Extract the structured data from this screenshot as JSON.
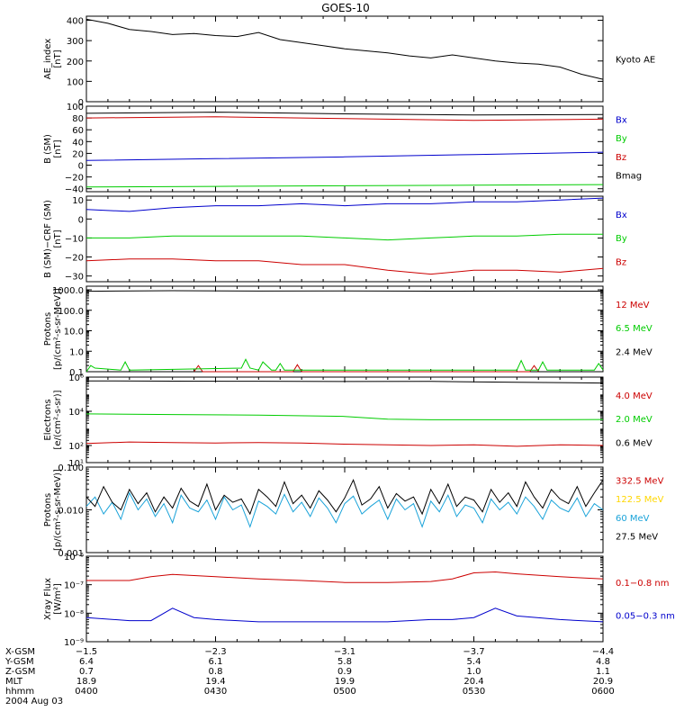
{
  "title": "GOES-10",
  "colors": {
    "black": "#000000",
    "red": "#cc0000",
    "green": "#00cc00",
    "blue": "#0000cc",
    "yellow": "#ffd700",
    "cyan": "#1aa3d9"
  },
  "chart_data": [
    {
      "type": "line",
      "ylabel": [
        "AE_index",
        "[nT]"
      ],
      "scale": "linear",
      "ylim": [
        0,
        420
      ],
      "yticks": [
        0,
        100,
        200,
        300,
        400
      ],
      "ytick_labels": [
        "0",
        "100",
        "200",
        "300",
        "400"
      ],
      "series": [
        {
          "name": "Kyoto AE",
          "color": "#000000",
          "x": [
            0,
            5,
            10,
            15,
            20,
            25,
            30,
            35,
            40,
            45,
            50,
            55,
            60,
            65,
            70,
            75,
            80,
            85,
            90,
            95,
            100,
            105,
            110,
            115,
            120
          ],
          "y": [
            405,
            385,
            355,
            345,
            330,
            335,
            325,
            320,
            340,
            305,
            290,
            275,
            260,
            250,
            240,
            225,
            215,
            230,
            215,
            200,
            190,
            185,
            170,
            135,
            110
          ]
        }
      ]
    },
    {
      "type": "line",
      "ylabel": [
        "B (SM)",
        "[nT]"
      ],
      "scale": "linear",
      "ylim": [
        -45,
        100
      ],
      "yticks": [
        -40,
        -20,
        0,
        20,
        40,
        60,
        80,
        100
      ],
      "ytick_labels": [
        "−40",
        "−20",
        "0",
        "20",
        "40",
        "60",
        "80",
        "100"
      ],
      "series": [
        {
          "name": "Bx",
          "color": "#0000cc",
          "x": [
            0,
            30,
            60,
            90,
            120
          ],
          "y": [
            8,
            11,
            14,
            18,
            22
          ]
        },
        {
          "name": "By",
          "color": "#00cc00",
          "x": [
            0,
            30,
            60,
            90,
            120
          ],
          "y": [
            -37,
            -36,
            -35,
            -34,
            -33
          ]
        },
        {
          "name": "Bz",
          "color": "#cc0000",
          "x": [
            0,
            30,
            60,
            90,
            120
          ],
          "y": [
            80,
            82,
            79,
            76,
            78
          ]
        },
        {
          "name": "Bmag",
          "color": "#000000",
          "x": [
            0,
            30,
            60,
            90,
            120
          ],
          "y": [
            88,
            90,
            87,
            85,
            86
          ]
        }
      ]
    },
    {
      "type": "line",
      "ylabel": [
        "B (SM)−CRF (SM)",
        "[nT]"
      ],
      "scale": "linear",
      "ylim": [
        -33,
        12
      ],
      "yticks": [
        -30,
        -20,
        -10,
        0,
        10
      ],
      "ytick_labels": [
        "−30",
        "−20",
        "−10",
        "0",
        "10"
      ],
      "series": [
        {
          "name": "Bx",
          "color": "#0000cc",
          "x": [
            0,
            10,
            20,
            30,
            40,
            50,
            60,
            70,
            80,
            90,
            100,
            110,
            120
          ],
          "y": [
            5,
            4,
            6,
            7,
            7,
            8,
            7,
            8,
            8,
            9,
            9,
            10,
            11
          ]
        },
        {
          "name": "By",
          "color": "#00cc00",
          "x": [
            0,
            10,
            20,
            30,
            40,
            50,
            60,
            70,
            80,
            90,
            100,
            110,
            120
          ],
          "y": [
            -10,
            -10,
            -9,
            -9,
            -9,
            -9,
            -10,
            -11,
            -10,
            -9,
            -9,
            -8,
            -8
          ]
        },
        {
          "name": "Bz",
          "color": "#cc0000",
          "x": [
            0,
            10,
            20,
            30,
            40,
            50,
            60,
            70,
            80,
            90,
            100,
            110,
            120
          ],
          "y": [
            -22,
            -21,
            -21,
            -22,
            -22,
            -24,
            -24,
            -27,
            -29,
            -27,
            -27,
            -28,
            -26
          ]
        }
      ]
    },
    {
      "type": "line",
      "ylabel": [
        "Protons",
        "[p/(cm²-s-sr-MeV)]"
      ],
      "scale": "log",
      "ylim": [
        0.1,
        1500
      ],
      "yticks": [
        0.1,
        1.0,
        10.0,
        100.0,
        1000.0
      ],
      "ytick_labels": [
        "0.1",
        "1.0",
        "10.0",
        "100.0",
        "1000.0"
      ],
      "series": [
        {
          "name": "12 MeV",
          "color": "#cc0000",
          "x": [
            25,
            26,
            27,
            48,
            49,
            50,
            103,
            104,
            105
          ],
          "y": [
            0.1,
            0.2,
            0.1,
            0.1,
            0.22,
            0.1,
            0.1,
            0.2,
            0.1
          ]
        },
        {
          "name": "6.5 MeV",
          "color": "#00cc00",
          "x": [
            0,
            1,
            2,
            8,
            9,
            10,
            36,
            37,
            38,
            40,
            41,
            43,
            44,
            45,
            46,
            47,
            100,
            101,
            102,
            105,
            106,
            107,
            118,
            119,
            120
          ],
          "y": [
            0.1,
            0.2,
            0.15,
            0.12,
            0.3,
            0.12,
            0.15,
            0.4,
            0.15,
            0.12,
            0.3,
            0.12,
            0.12,
            0.25,
            0.12,
            0.12,
            0.12,
            0.35,
            0.12,
            0.12,
            0.3,
            0.12,
            0.12,
            0.25,
            0.12
          ]
        },
        {
          "name": "2.4 MeV",
          "color": "#000000",
          "x": [
            0,
            20,
            40,
            60,
            80,
            100,
            120
          ],
          "y": [
            850,
            900,
            870,
            880,
            860,
            870,
            860
          ]
        }
      ]
    },
    {
      "type": "line",
      "ylabel": [
        "Electrons",
        "[e/(cm²-s-sr)]"
      ],
      "scale": "log",
      "ylim": [
        10,
        1000000
      ],
      "yticks": [
        10,
        100,
        10000,
        1000000
      ],
      "ytick_labels": [
        "10¹",
        "10²",
        "10⁴",
        "10⁶"
      ],
      "series": [
        {
          "name": "4.0 MeV",
          "color": "#cc0000",
          "x": [
            0,
            10,
            20,
            30,
            40,
            50,
            60,
            70,
            80,
            90,
            100,
            110,
            120
          ],
          "y": [
            130,
            160,
            150,
            140,
            150,
            140,
            120,
            110,
            100,
            110,
            90,
            110,
            100
          ]
        },
        {
          "name": "2.0 MeV",
          "color": "#00cc00",
          "x": [
            0,
            20,
            40,
            60,
            70,
            80,
            100,
            120
          ],
          "y": [
            7000,
            6500,
            6000,
            5000,
            3500,
            3200,
            3200,
            3300
          ]
        },
        {
          "name": "0.6 MeV",
          "color": "#000000",
          "x": [
            0,
            20,
            40,
            60,
            80,
            100,
            120
          ],
          "y": [
            600000,
            580000,
            570000,
            550000,
            560000,
            500000,
            450000
          ]
        }
      ]
    },
    {
      "type": "line",
      "ylabel": [
        "Protons",
        "[p/(cm²-s-sr-MeV)]"
      ],
      "scale": "log",
      "ylim": [
        0.001,
        0.1
      ],
      "yticks": [
        0.001,
        0.01,
        0.1
      ],
      "ytick_labels": [
        "0.001",
        "0.010",
        "0.100"
      ],
      "series": [
        {
          "name": "332.5 MeV",
          "color": "#cc0000",
          "x": [],
          "y": []
        },
        {
          "name": "122.5 MeV",
          "color": "#ffd700",
          "x": [],
          "y": []
        },
        {
          "name": "60 MeV",
          "color": "#1aa3d9",
          "x": [
            0,
            2,
            4,
            6,
            8,
            10,
            12,
            14,
            16,
            18,
            20,
            22,
            24,
            26,
            28,
            30,
            32,
            34,
            36,
            38,
            40,
            42,
            44,
            46,
            48,
            50,
            52,
            54,
            56,
            58,
            60,
            62,
            64,
            66,
            68,
            70,
            72,
            74,
            76,
            78,
            80,
            82,
            84,
            86,
            88,
            90,
            92,
            94,
            96,
            98,
            100,
            102,
            104,
            106,
            108,
            110,
            112,
            114,
            116,
            118,
            120
          ],
          "y": [
            0.012,
            0.02,
            0.008,
            0.015,
            0.006,
            0.025,
            0.01,
            0.018,
            0.007,
            0.014,
            0.005,
            0.022,
            0.011,
            0.009,
            0.017,
            0.006,
            0.02,
            0.01,
            0.013,
            0.004,
            0.016,
            0.012,
            0.008,
            0.023,
            0.009,
            0.015,
            0.007,
            0.019,
            0.011,
            0.005,
            0.014,
            0.021,
            0.008,
            0.012,
            0.017,
            0.006,
            0.018,
            0.01,
            0.014,
            0.004,
            0.016,
            0.009,
            0.022,
            0.007,
            0.013,
            0.011,
            0.005,
            0.018,
            0.01,
            0.015,
            0.008,
            0.02,
            0.012,
            0.006,
            0.017,
            0.011,
            0.009,
            0.019,
            0.007,
            0.014,
            0.01
          ]
        },
        {
          "name": "27.5 MeV",
          "color": "#000000",
          "x": [
            0,
            2,
            4,
            6,
            8,
            10,
            12,
            14,
            16,
            18,
            20,
            22,
            24,
            26,
            28,
            30,
            32,
            34,
            36,
            38,
            40,
            42,
            44,
            46,
            48,
            50,
            52,
            54,
            56,
            58,
            60,
            62,
            64,
            66,
            68,
            70,
            72,
            74,
            76,
            78,
            80,
            82,
            84,
            86,
            88,
            90,
            92,
            94,
            96,
            98,
            100,
            102,
            104,
            106,
            108,
            110,
            112,
            114,
            116,
            118,
            120
          ],
          "y": [
            0.02,
            0.012,
            0.035,
            0.015,
            0.01,
            0.03,
            0.014,
            0.025,
            0.009,
            0.02,
            0.011,
            0.032,
            0.016,
            0.012,
            0.04,
            0.01,
            0.022,
            0.015,
            0.018,
            0.008,
            0.03,
            0.02,
            0.012,
            0.045,
            0.014,
            0.022,
            0.011,
            0.028,
            0.017,
            0.009,
            0.019,
            0.05,
            0.013,
            0.018,
            0.035,
            0.011,
            0.024,
            0.016,
            0.02,
            0.008,
            0.03,
            0.014,
            0.04,
            0.012,
            0.02,
            0.017,
            0.009,
            0.03,
            0.015,
            0.025,
            0.012,
            0.045,
            0.02,
            0.011,
            0.03,
            0.018,
            0.014,
            0.035,
            0.012,
            0.025,
            0.05
          ]
        }
      ]
    },
    {
      "type": "line",
      "ylabel": [
        "Xray Flux",
        "[W/m²]"
      ],
      "scale": "log",
      "ylim": [
        1e-09,
        1e-06
      ],
      "yticks": [
        1e-09,
        1e-08,
        1e-07,
        1e-06
      ],
      "ytick_labels": [
        "10⁻⁹",
        "10⁻⁸",
        "10⁻⁷",
        "10⁻⁶"
      ],
      "series": [
        {
          "name": "0.1−0.8 nm",
          "color": "#cc0000",
          "x": [
            0,
            10,
            15,
            20,
            25,
            30,
            40,
            50,
            60,
            70,
            80,
            85,
            90,
            95,
            100,
            110,
            120
          ],
          "y": [
            1.4e-07,
            1.4e-07,
            1.9e-07,
            2.3e-07,
            2.1e-07,
            1.9e-07,
            1.6e-07,
            1.4e-07,
            1.2e-07,
            1.2e-07,
            1.3e-07,
            1.6e-07,
            2.6e-07,
            2.8e-07,
            2.4e-07,
            1.9e-07,
            1.6e-07
          ]
        },
        {
          "name": "0.05−0.3 nm",
          "color": "#0000cc",
          "x": [
            0,
            10,
            15,
            20,
            25,
            30,
            40,
            50,
            60,
            70,
            80,
            85,
            90,
            95,
            100,
            110,
            120
          ],
          "y": [
            7e-09,
            5.5e-09,
            5.5e-09,
            1.5e-08,
            7e-09,
            6e-09,
            5e-09,
            5e-09,
            5e-09,
            5e-09,
            6e-09,
            6e-09,
            7e-09,
            1.5e-08,
            8e-09,
            6e-09,
            5e-09
          ]
        }
      ]
    }
  ],
  "xaxis": {
    "range": [
      0,
      120
    ],
    "major_ticks": [
      0,
      30,
      60,
      90,
      120
    ],
    "minor_step": 5,
    "row_labels": [
      "X-GSM",
      "Y-GSM",
      "Z-GSM",
      "MLT",
      "hhmm"
    ],
    "columns": [
      [
        "−1.5",
        "6.4",
        "0.7",
        "18.9",
        "0400"
      ],
      [
        "−2.3",
        "6.1",
        "0.8",
        "19.4",
        "0430"
      ],
      [
        "−3.1",
        "5.8",
        "0.9",
        "19.9",
        "0500"
      ],
      [
        "−3.7",
        "5.4",
        "1.0",
        "20.4",
        "0530"
      ],
      [
        "−4.4",
        "4.8",
        "1.1",
        "20.9",
        "0600"
      ]
    ],
    "date": "2004 Aug 03"
  }
}
